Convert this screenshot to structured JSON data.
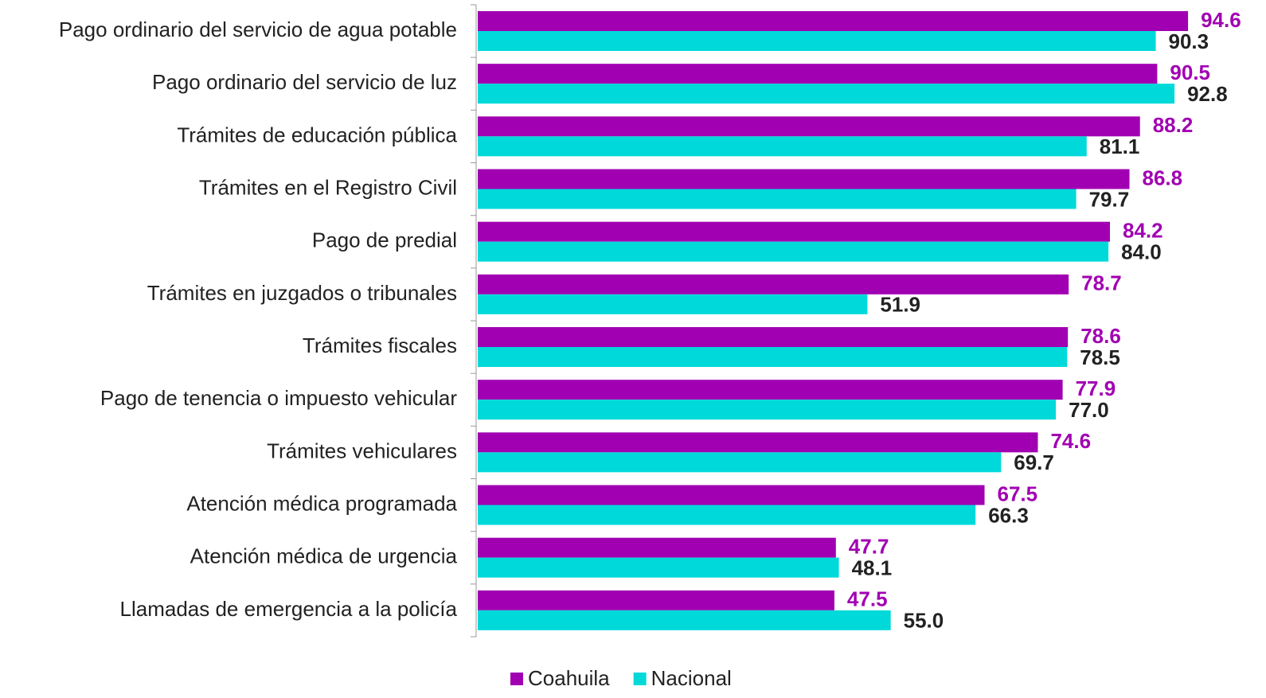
{
  "chart_data": {
    "type": "barh",
    "categories": [
      "Pago ordinario del servicio de agua potable",
      "Pago ordinario del servicio de luz",
      "Trámites de educación pública",
      "Trámites en el Registro Civil",
      "Pago de predial",
      "Trámites en juzgados o tribunales",
      "Trámites fiscales",
      "Pago de tenencia o impuesto vehicular",
      "Trámites vehiculares",
      "Atención médica programada",
      "Atención médica de urgencia",
      "Llamadas de emergencia a la policía"
    ],
    "series": [
      {
        "name": "Coahuila",
        "color": "#a100b2",
        "label_color": "#a100b2",
        "values": [
          94.6,
          90.5,
          88.2,
          86.8,
          84.2,
          78.7,
          78.6,
          77.9,
          74.6,
          67.5,
          47.7,
          47.5
        ],
        "value_labels": [
          "94.6",
          "90.5",
          "88.2",
          "86.8",
          "84.2",
          "78.7",
          "78.6",
          "77.9",
          "74.6",
          "67.5",
          "47.7",
          "47.5"
        ]
      },
      {
        "name": "Nacional",
        "color": "#00d9d9",
        "label_color": "#222222",
        "values": [
          90.3,
          92.8,
          81.1,
          79.7,
          84.0,
          51.9,
          78.5,
          77.0,
          69.7,
          66.3,
          48.1,
          55.0
        ],
        "value_labels": [
          "90.3",
          "92.8",
          "81.1",
          "79.7",
          "84.0",
          "51.9",
          "78.5",
          "77.0",
          "69.7",
          "66.3",
          "48.1",
          "55.0"
        ]
      }
    ],
    "xlim": [
      0,
      100
    ],
    "legend": "bottom"
  }
}
